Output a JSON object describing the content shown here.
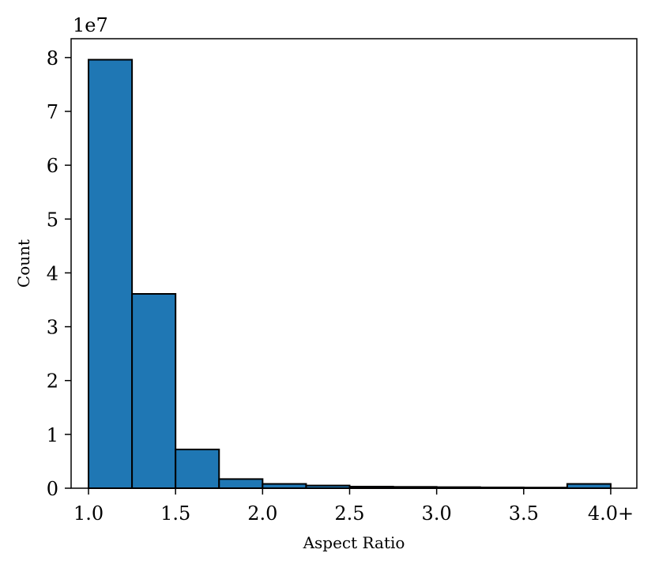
{
  "chart_data": {
    "type": "bar",
    "title": "",
    "xlabel": "Aspect Ratio",
    "ylabel": "Count",
    "y_multiplier_label": "1e7",
    "xlim": [
      0.9,
      4.15
    ],
    "ylim": [
      0,
      8.35
    ],
    "x_ticks": [
      {
        "value": 1.0,
        "label": "1.0"
      },
      {
        "value": 1.5,
        "label": "1.5"
      },
      {
        "value": 2.0,
        "label": "2.0"
      },
      {
        "value": 2.5,
        "label": "2.5"
      },
      {
        "value": 3.0,
        "label": "3.0"
      },
      {
        "value": 3.5,
        "label": "3.5"
      },
      {
        "value": 4.0,
        "label": "4.0+"
      }
    ],
    "y_ticks": [
      {
        "value": 0,
        "label": "0"
      },
      {
        "value": 1,
        "label": "1"
      },
      {
        "value": 2,
        "label": "2"
      },
      {
        "value": 3,
        "label": "3"
      },
      {
        "value": 4,
        "label": "4"
      },
      {
        "value": 5,
        "label": "5"
      },
      {
        "value": 6,
        "label": "6"
      },
      {
        "value": 7,
        "label": "7"
      },
      {
        "value": 8,
        "label": "8"
      }
    ],
    "bins": [
      {
        "x0": 1.0,
        "x1": 1.25,
        "value": 7.96
      },
      {
        "x0": 1.25,
        "x1": 1.5,
        "value": 3.61
      },
      {
        "x0": 1.5,
        "x1": 1.75,
        "value": 0.72
      },
      {
        "x0": 1.75,
        "x1": 2.0,
        "value": 0.17
      },
      {
        "x0": 2.0,
        "x1": 2.25,
        "value": 0.08
      },
      {
        "x0": 2.25,
        "x1": 2.5,
        "value": 0.05
      },
      {
        "x0": 2.5,
        "x1": 2.75,
        "value": 0.03
      },
      {
        "x0": 2.75,
        "x1": 3.0,
        "value": 0.025
      },
      {
        "x0": 3.0,
        "x1": 3.25,
        "value": 0.02
      },
      {
        "x0": 3.25,
        "x1": 3.5,
        "value": 0.015
      },
      {
        "x0": 3.5,
        "x1": 3.75,
        "value": 0.012
      },
      {
        "x0": 3.75,
        "x1": 4.0,
        "value": 0.08
      }
    ],
    "bar_color": "#1f77b4",
    "edge_color": "#000000",
    "grid": false,
    "legend": null
  }
}
